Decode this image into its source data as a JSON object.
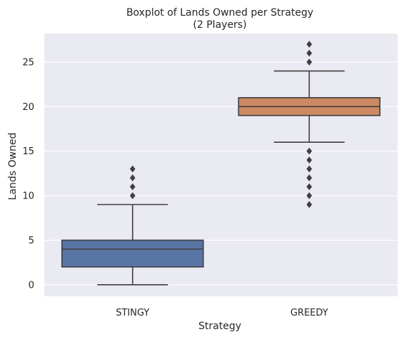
{
  "chart_data": {
    "type": "boxplot",
    "title": "Boxplot of Lands Owned per Strategy",
    "subtitle": "(2 Players)",
    "xlabel": "Strategy",
    "ylabel": "Lands Owned",
    "ylim": [
      -1.3,
      28.2
    ],
    "yticks": [
      0,
      5,
      10,
      15,
      20,
      25
    ],
    "grid": true,
    "categories": [
      "STINGY",
      "GREEDY"
    ],
    "boxes": [
      {
        "category": "STINGY",
        "whisker_low": 0,
        "q1": 2,
        "median": 4,
        "q3": 5,
        "whisker_high": 9,
        "outliers": [
          10,
          11,
          12,
          13
        ],
        "color": "#5875a4"
      },
      {
        "category": "GREEDY",
        "whisker_low": 16,
        "q1": 19,
        "median": 20,
        "q3": 21,
        "whisker_high": 24,
        "outliers": [
          9,
          10,
          11,
          12,
          13,
          14,
          15,
          25,
          26,
          27
        ],
        "color": "#cc8963"
      }
    ],
    "colors": {
      "background": "#eaeaf2",
      "grid": "#ffffff",
      "line": "#3f3f3f"
    }
  }
}
